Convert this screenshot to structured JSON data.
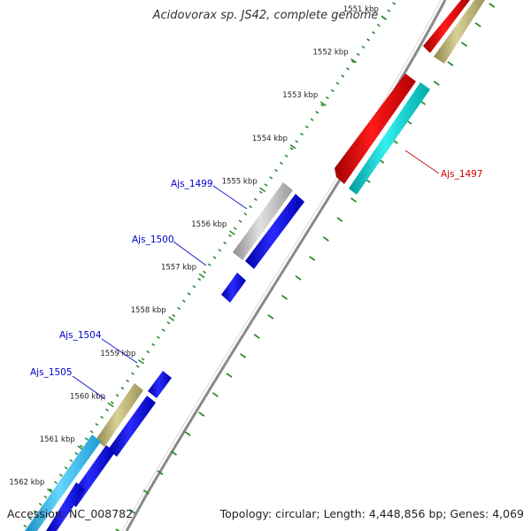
{
  "title": "Acidovorax sp. JS42, complete genome",
  "footer": {
    "accession": "Accession: NC_008782",
    "summary": "Topology: circular; Length: 4,448,856 bp; Genes: 4,069"
  },
  "colors": {
    "backbone": "#8a8a8a",
    "tick_major": "#1f6e1f",
    "tick_minor": "#2e8b2e",
    "label_blue": "#0000cc",
    "label_red": "#cc0000",
    "gene_red": "#ee0000",
    "gene_cyan": "#00d0d0",
    "gene_olive": "#bdb36e",
    "gene_gray": "#c0c0c0",
    "gene_blue": "#0000ee",
    "gene_lightblue": "#29b6e8"
  },
  "scale_ticks": [
    {
      "label": "1551 kbp",
      "faded": true
    },
    {
      "label": "1552 kbp"
    },
    {
      "label": "1553 kbp"
    },
    {
      "label": "1554 kbp"
    },
    {
      "label": "1555 kbp"
    },
    {
      "label": "1556 kbp"
    },
    {
      "label": "1557 kbp"
    },
    {
      "label": "1558 kbp"
    },
    {
      "label": "1559 kbp"
    },
    {
      "label": "1560 kbp"
    },
    {
      "label": "1561 kbp"
    },
    {
      "label": "1562 kbp"
    }
  ],
  "gene_labels": [
    {
      "id": "ajs-1497",
      "text": "Ajs_1497",
      "color": "red"
    },
    {
      "id": "ajs-1499",
      "text": "Ajs_1499",
      "color": "blue"
    },
    {
      "id": "ajs-1500",
      "text": "Ajs_1500",
      "color": "blue"
    },
    {
      "id": "ajs-1504",
      "text": "Ajs_1504",
      "color": "blue"
    },
    {
      "id": "ajs-1505",
      "text": "Ajs_1505",
      "color": "blue"
    }
  ]
}
